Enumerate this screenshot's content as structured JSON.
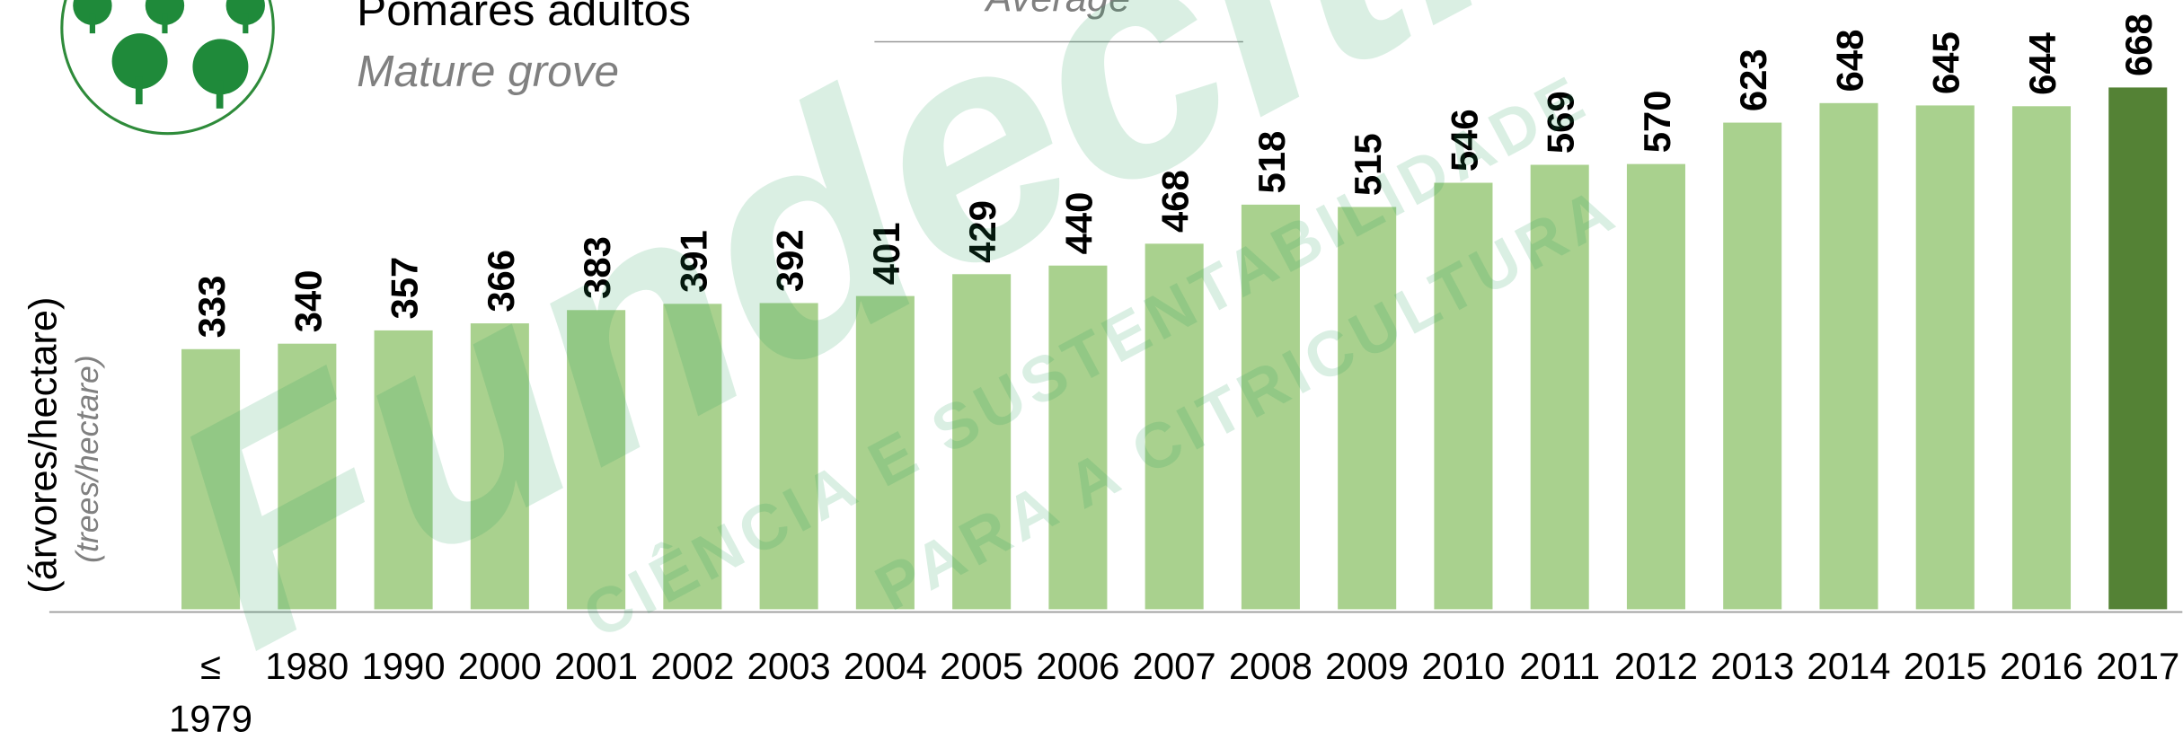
{
  "chart_data": {
    "type": "bar",
    "title": "Pomares adultos",
    "subtitle": "Mature grove",
    "legend_text": "Average",
    "y_label": "(árvores/hectare)",
    "y_label_secondary": "(trees/hectare)",
    "watermark": {
      "brand": "Fundecitrus",
      "line1": "CIÊNCIA E SUSTENTABILIDADE",
      "line2": "PARA A CITRICULTURA"
    },
    "categories": [
      "≤ 1979",
      "1980",
      "1990",
      "2000",
      "2001",
      "2002",
      "2003",
      "2004",
      "2005",
      "2006",
      "2007",
      "2008",
      "2009",
      "2010",
      "2011",
      "2012",
      "2013",
      "2014",
      "2015",
      "2016",
      "2017"
    ],
    "values": [
      333,
      340,
      357,
      366,
      383,
      391,
      392,
      401,
      429,
      440,
      468,
      518,
      515,
      546,
      569,
      570,
      623,
      648,
      645,
      644,
      668
    ],
    "colors": [
      "#a9d18e",
      "#a9d18e",
      "#a9d18e",
      "#a9d18e",
      "#a9d18e",
      "#a9d18e",
      "#a9d18e",
      "#a9d18e",
      "#a9d18e",
      "#a9d18e",
      "#a9d18e",
      "#a9d18e",
      "#a9d18e",
      "#a9d18e",
      "#a9d18e",
      "#a9d18e",
      "#a9d18e",
      "#a9d18e",
      "#a9d18e",
      "#a9d18e",
      "#548235"
    ],
    "ylim": [
      0,
      780
    ]
  }
}
